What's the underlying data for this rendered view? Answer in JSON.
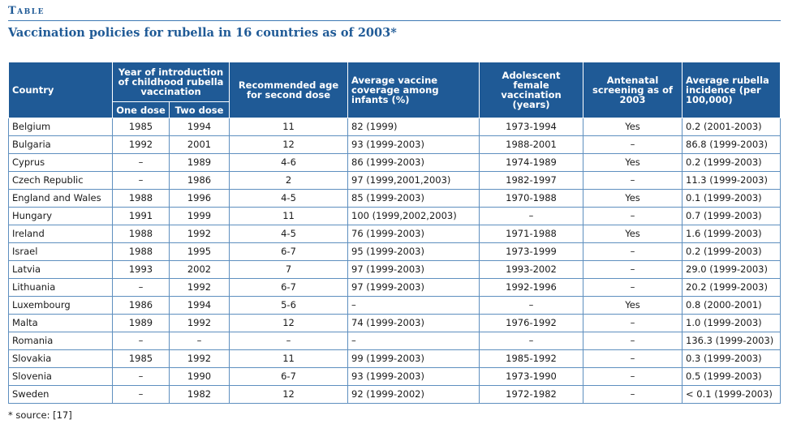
{
  "header": {
    "label": "Table",
    "title": "Vaccination policies for rubella in 16 countries as of 2003*"
  },
  "columns": {
    "country": "Country",
    "year_intro": "Year of introduction of childhood rubella vaccination",
    "one_dose": "One dose",
    "two_dose": "Two dose",
    "rec_age": "Recommended age for second dose",
    "coverage": "Average vaccine coverage among infants (%)",
    "adolescent": "Adolescent female vaccination (years)",
    "antenatal": "Antenatal screening as of 2003",
    "incidence": "Average rubella incidence (per 100,000)"
  },
  "rows": [
    [
      "Belgium",
      "1985",
      "1994",
      "11",
      "82 (1999)",
      "1973-1994",
      "Yes",
      "0.2 (2001-2003)"
    ],
    [
      "Bulgaria",
      "1992",
      "2001",
      "12",
      "93 (1999-2003)",
      "1988-2001",
      "–",
      "86.8 (1999-2003)"
    ],
    [
      "Cyprus",
      "–",
      "1989",
      "4-6",
      "86 (1999-2003)",
      "1974-1989",
      "Yes",
      "0.2 (1999-2003)"
    ],
    [
      "Czech Republic",
      "–",
      "1986",
      "2",
      "97 (1999,2001,2003)",
      "1982-1997",
      "–",
      "11.3 (1999-2003)"
    ],
    [
      "England and Wales",
      "1988",
      "1996",
      "4-5",
      "85 (1999-2003)",
      "1970-1988",
      "Yes",
      "0.1 (1999-2003)"
    ],
    [
      "Hungary",
      "1991",
      "1999",
      "11",
      "100 (1999,2002,2003)",
      "–",
      "–",
      "0.7 (1999-2003)"
    ],
    [
      "Ireland",
      "1988",
      "1992",
      "4-5",
      "76 (1999-2003)",
      "1971-1988",
      "Yes",
      "1.6 (1999-2003)"
    ],
    [
      "Israel",
      "1988",
      "1995",
      "6-7",
      "95 (1999-2003)",
      "1973-1999",
      "–",
      "0.2 (1999-2003)"
    ],
    [
      "Latvia",
      "1993",
      "2002",
      "7",
      "97 (1999-2003)",
      "1993-2002",
      "–",
      "29.0 (1999-2003)"
    ],
    [
      "Lithuania",
      "–",
      "1992",
      "6-7",
      "97 (1999-2003)",
      "1992-1996",
      "–",
      "20.2 (1999-2003)"
    ],
    [
      "Luxembourg",
      "1986",
      "1994",
      "5-6",
      "–",
      "–",
      "Yes",
      "0.8 (2000-2001)"
    ],
    [
      "Malta",
      "1989",
      "1992",
      "12",
      "74 (1999-2003)",
      "1976-1992",
      "–",
      "1.0 (1999-2003)"
    ],
    [
      "Romania",
      "–",
      "–",
      "–",
      "–",
      "–",
      "–",
      "136.3 (1999-2003)"
    ],
    [
      "Slovakia",
      "1985",
      "1992",
      "11",
      "99 (1999-2003)",
      "1985-1992",
      "–",
      "0.3 (1999-2003)"
    ],
    [
      "Slovenia",
      "–",
      "1990",
      "6-7",
      "93 (1999-2003)",
      "1973-1990",
      "–",
      "0.5 (1999-2003)"
    ],
    [
      "Sweden",
      "–",
      "1982",
      "12",
      "92 (1999-2002)",
      "1972-1982",
      "–",
      "< 0.1 (1999-2003)"
    ]
  ],
  "footer": {
    "source": "* source: [17]"
  }
}
